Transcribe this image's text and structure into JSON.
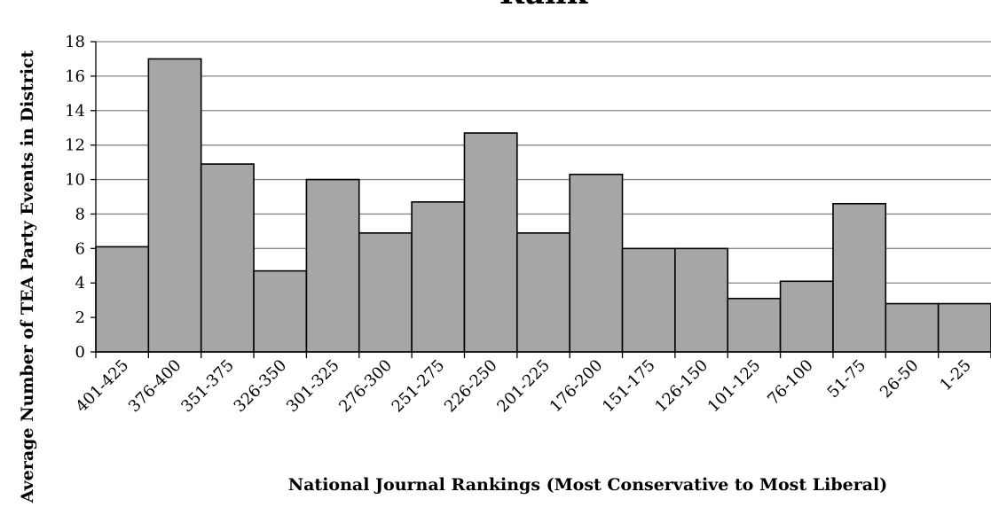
{
  "chart_data": {
    "type": "bar",
    "title": "Rank",
    "xlabel": "National Journal Rankings (Most Conservative to Most Liberal)",
    "ylabel": "Average Number of TEA Party Events in District",
    "categories": [
      "401-425",
      "376-400",
      "351-375",
      "326-350",
      "301-325",
      "276-300",
      "251-275",
      "226-250",
      "201-225",
      "176-200",
      "151-175",
      "126-150",
      "101-125",
      "76-100",
      "51-75",
      "26-50",
      "1-25"
    ],
    "values": [
      6.1,
      17.0,
      10.9,
      4.7,
      10.0,
      6.9,
      8.7,
      12.7,
      6.9,
      10.3,
      6.0,
      6.0,
      3.1,
      4.1,
      8.6,
      2.8,
      2.8
    ],
    "ylim": [
      0,
      18
    ],
    "yticks": [
      0,
      2,
      4,
      6,
      8,
      10,
      12,
      14,
      16,
      18
    ],
    "grid": true,
    "bar_color": "#a6a6a6",
    "grid_color": "#868686"
  }
}
